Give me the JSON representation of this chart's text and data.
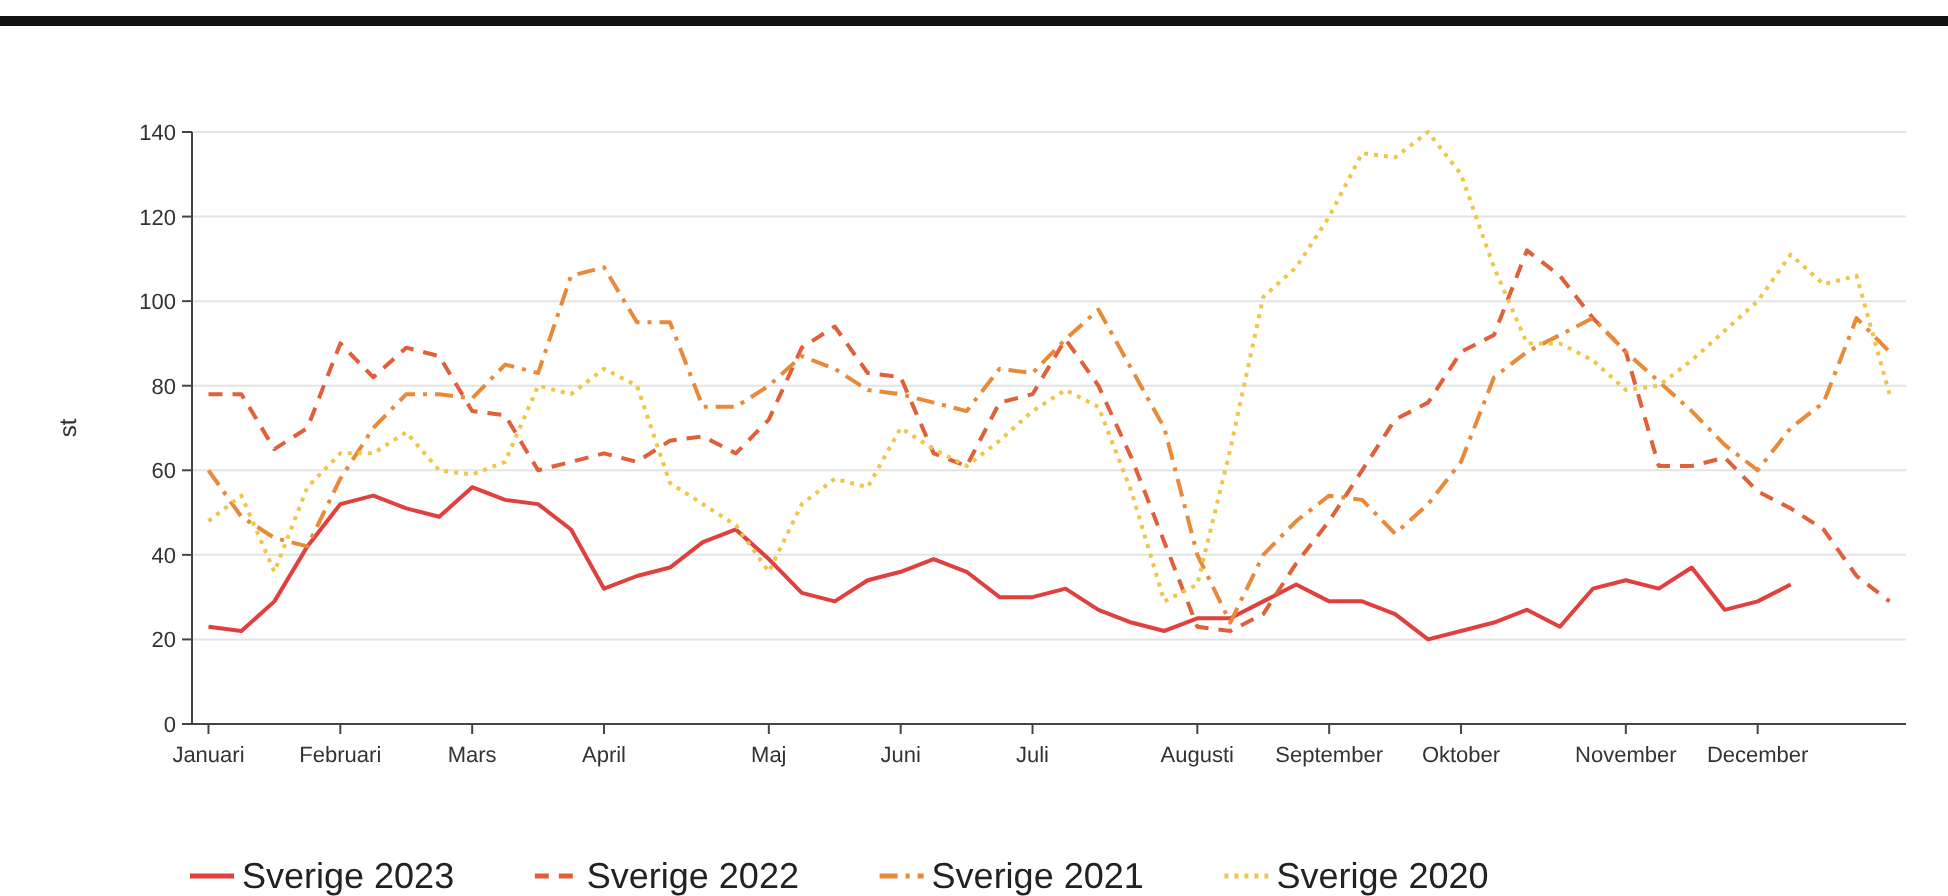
{
  "chart_data": {
    "type": "line",
    "ylabel": "st",
    "categories": [
      "Januari",
      null,
      null,
      null,
      "Februari",
      null,
      null,
      null,
      "Mars",
      null,
      null,
      null,
      "April",
      null,
      null,
      null,
      null,
      "Maj",
      null,
      null,
      null,
      "Juni",
      null,
      null,
      null,
      "Juli",
      null,
      null,
      null,
      null,
      "Augusti",
      null,
      null,
      null,
      "September",
      null,
      null,
      null,
      "Oktober",
      null,
      null,
      null,
      null,
      "November",
      null,
      null,
      null,
      "December",
      null,
      null,
      null,
      null
    ],
    "ylim": [
      0,
      140
    ],
    "yticks": [
      0,
      20,
      40,
      60,
      80,
      100,
      120,
      140
    ],
    "grid": "y",
    "legend": "bottom",
    "marker": "none",
    "series": [
      {
        "name": "Sverige 2023",
        "color": "#e0403e",
        "line_style": "solid",
        "values": [
          23,
          22,
          29,
          42,
          52,
          54,
          51,
          49,
          56,
          53,
          52,
          46,
          32,
          35,
          37,
          43,
          46,
          39,
          31,
          29,
          34,
          36,
          39,
          36,
          30,
          30,
          32,
          27,
          24,
          22,
          25,
          25,
          29,
          33,
          29,
          29,
          26,
          20,
          22,
          24,
          27,
          23,
          32,
          34,
          32,
          37,
          27,
          29,
          33,
          null,
          null,
          null
        ]
      },
      {
        "name": "Sverige 2022",
        "color": "#e0603a",
        "line_style": "dashed",
        "values": [
          78,
          78,
          65,
          70,
          90,
          82,
          89,
          87,
          74,
          73,
          60,
          62,
          64,
          62,
          67,
          68,
          64,
          72,
          89,
          94,
          83,
          82,
          64,
          61,
          76,
          78,
          91,
          80,
          63,
          43,
          23,
          22,
          26,
          38,
          48,
          60,
          72,
          76,
          88,
          92,
          112,
          106,
          96,
          88,
          61,
          61,
          63,
          55,
          51,
          46,
          35,
          29
        ]
      },
      {
        "name": "Sverige 2021",
        "color": "#e88a3a",
        "line_style": "dashdot",
        "values": [
          60,
          49,
          44,
          42,
          58,
          70,
          78,
          78,
          77,
          85,
          83,
          106,
          108,
          95,
          95,
          75,
          75,
          80,
          87,
          84,
          79,
          78,
          76,
          74,
          84,
          83,
          91,
          98,
          84,
          70,
          40,
          24,
          40,
          48,
          54,
          53,
          45,
          52,
          62,
          82,
          88,
          92,
          96,
          88,
          81,
          74,
          66,
          60,
          70,
          76,
          96,
          88
        ]
      },
      {
        "name": "Sverige 2020",
        "color": "#eec64a",
        "line_style": "dotted",
        "values": [
          48,
          54,
          36,
          56,
          64,
          64,
          69,
          60,
          59,
          62,
          80,
          78,
          84,
          80,
          57,
          52,
          47,
          36,
          52,
          58,
          56,
          70,
          65,
          61,
          67,
          74,
          79,
          75,
          55,
          29,
          33,
          65,
          101,
          108,
          120,
          135,
          134,
          140,
          130,
          108,
          90,
          90,
          86,
          79,
          80,
          86,
          93,
          100,
          111,
          104,
          106,
          78
        ]
      }
    ]
  }
}
